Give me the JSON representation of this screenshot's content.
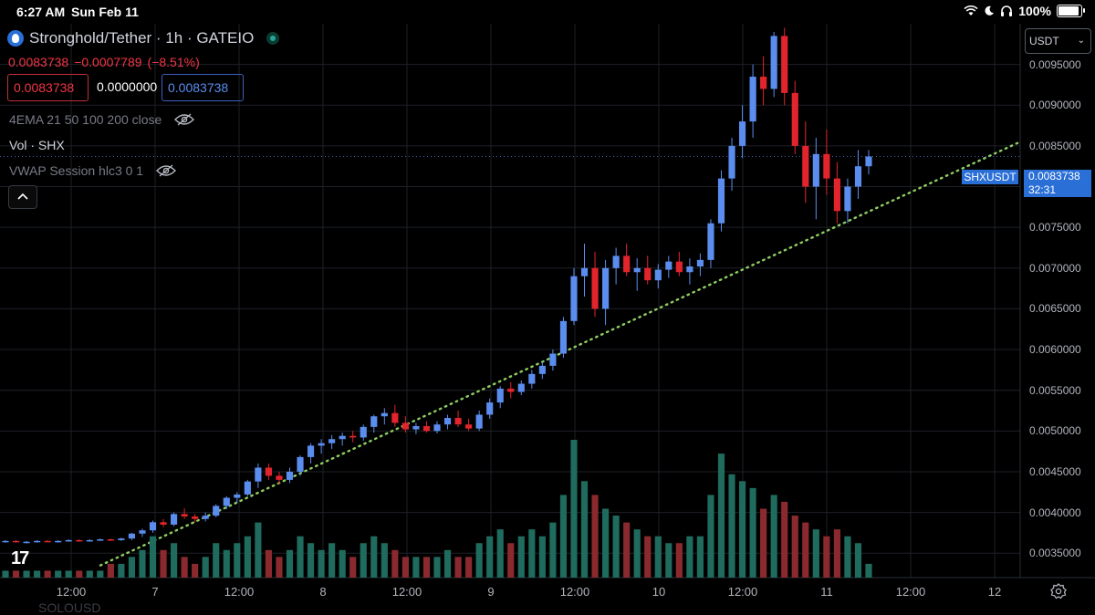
{
  "status_bar": {
    "time": "6:27 AM",
    "date": "Sun Feb 11",
    "battery_percent": "100%",
    "battery_level": 1.0
  },
  "header": {
    "title": "Stronghold/Tether · 1h · GATEIO",
    "price_change_line": {
      "last": "0.0083738",
      "change": "−0.0007789",
      "change_pct": "(−8.51%)"
    },
    "bid_price": "0.0083738",
    "spread": "0.0000000",
    "ask_price": "0.0083738"
  },
  "indicators": {
    "ema": "4EMA 21 50 100 200 close",
    "volume": "Vol · SHX",
    "vwap": "VWAP Session hlc3 0 1"
  },
  "currency_select": {
    "value": "USDT"
  },
  "price_tag": {
    "symbol": "SHXUSDT",
    "price": "0.0083738",
    "countdown": "32:31"
  },
  "bottom_ghost_text": "SOLOUSD",
  "colors": {
    "up": "#5b8def",
    "down": "#e2242d",
    "vol_up": "#1f6b5e",
    "vol_down": "#8a2a2e",
    "trendline": "#8fce62",
    "grid": "#1e2128"
  },
  "chart_data": {
    "type": "candlestick",
    "symbol": "SHXUSDT",
    "interval": "1h",
    "ylim": [
      0.0032,
      0.01
    ],
    "y_ticks": [
      "0.0095000",
      "0.0090000",
      "0.0085000",
      "0.0080000",
      "0.0075000",
      "0.0070000",
      "0.0065000",
      "0.0060000",
      "0.0055000",
      "0.0050000",
      "0.0045000",
      "0.0040000",
      "0.0035000"
    ],
    "x_ticks": [
      "12:00",
      "7",
      "12:00",
      "8",
      "12:00",
      "9",
      "12:00",
      "10",
      "12:00",
      "11",
      "12:00",
      "12"
    ],
    "trendline": {
      "style": "dotted",
      "points": [
        [
          0,
          0.00335
        ],
        [
          100,
          0.00855
        ]
      ]
    },
    "candles": [
      [
        0.00365,
        0.00366,
        0.00363,
        0.00365,
        1
      ],
      [
        0.00365,
        0.00366,
        0.00363,
        0.00364,
        1
      ],
      [
        0.00364,
        0.00365,
        0.00362,
        0.00364,
        1
      ],
      [
        0.00364,
        0.00366,
        0.00363,
        0.00365,
        1
      ],
      [
        0.00365,
        0.00366,
        0.00364,
        0.00364,
        1
      ],
      [
        0.00364,
        0.00366,
        0.00363,
        0.00365,
        1
      ],
      [
        0.00365,
        0.00367,
        0.00364,
        0.00366,
        1
      ],
      [
        0.00366,
        0.00367,
        0.00364,
        0.00365,
        1
      ],
      [
        0.00365,
        0.00367,
        0.00364,
        0.00366,
        1
      ],
      [
        0.00366,
        0.00368,
        0.00365,
        0.00367,
        1
      ],
      [
        0.00367,
        0.00368,
        0.00365,
        0.00366,
        2
      ],
      [
        0.00366,
        0.00369,
        0.00365,
        0.00368,
        2
      ],
      [
        0.00368,
        0.00375,
        0.00366,
        0.00374,
        3
      ],
      [
        0.00374,
        0.0038,
        0.0037,
        0.00378,
        4
      ],
      [
        0.00378,
        0.0039,
        0.00375,
        0.00388,
        6
      ],
      [
        0.00388,
        0.00392,
        0.00382,
        0.00385,
        4
      ],
      [
        0.00385,
        0.004,
        0.00383,
        0.00398,
        5
      ],
      [
        0.00398,
        0.00405,
        0.00392,
        0.00395,
        3
      ],
      [
        0.00395,
        0.00398,
        0.00388,
        0.00392,
        2
      ],
      [
        0.00392,
        0.004,
        0.00389,
        0.00396,
        3
      ],
      [
        0.00396,
        0.0041,
        0.00394,
        0.00408,
        5
      ],
      [
        0.00408,
        0.0042,
        0.00404,
        0.00418,
        4
      ],
      [
        0.00418,
        0.00425,
        0.00412,
        0.00422,
        5
      ],
      [
        0.00422,
        0.0044,
        0.0042,
        0.00438,
        6
      ],
      [
        0.00438,
        0.0046,
        0.0043,
        0.00455,
        8
      ],
      [
        0.00455,
        0.0046,
        0.0044,
        0.00445,
        4
      ],
      [
        0.00445,
        0.0045,
        0.00435,
        0.0044,
        3
      ],
      [
        0.0044,
        0.00455,
        0.00436,
        0.0045,
        4
      ],
      [
        0.0045,
        0.0047,
        0.00445,
        0.00468,
        6
      ],
      [
        0.00468,
        0.00485,
        0.0046,
        0.00482,
        5
      ],
      [
        0.00482,
        0.0049,
        0.00472,
        0.00485,
        4
      ],
      [
        0.00485,
        0.00495,
        0.00478,
        0.0049,
        5
      ],
      [
        0.0049,
        0.00498,
        0.00482,
        0.00494,
        4
      ],
      [
        0.00494,
        0.005,
        0.00486,
        0.00492,
        3
      ],
      [
        0.00492,
        0.00508,
        0.00488,
        0.00505,
        5
      ],
      [
        0.00505,
        0.0052,
        0.00498,
        0.00518,
        6
      ],
      [
        0.00518,
        0.00528,
        0.00508,
        0.00522,
        5
      ],
      [
        0.00522,
        0.00532,
        0.00505,
        0.0051,
        4
      ],
      [
        0.0051,
        0.00518,
        0.00498,
        0.00502,
        3
      ],
      [
        0.00502,
        0.0051,
        0.00496,
        0.00506,
        3
      ],
      [
        0.00506,
        0.00512,
        0.00498,
        0.005,
        3
      ],
      [
        0.005,
        0.00512,
        0.00497,
        0.00508,
        3
      ],
      [
        0.00508,
        0.0052,
        0.00502,
        0.00516,
        4
      ],
      [
        0.00516,
        0.00525,
        0.00505,
        0.00508,
        3
      ],
      [
        0.00508,
        0.00515,
        0.005,
        0.00503,
        3
      ],
      [
        0.00503,
        0.00525,
        0.005,
        0.0052,
        5
      ],
      [
        0.0052,
        0.0054,
        0.00515,
        0.00535,
        6
      ],
      [
        0.00535,
        0.00555,
        0.00528,
        0.00552,
        7
      ],
      [
        0.00552,
        0.0056,
        0.0054,
        0.00548,
        5
      ],
      [
        0.00548,
        0.00562,
        0.00544,
        0.00558,
        6
      ],
      [
        0.00558,
        0.00575,
        0.00552,
        0.0057,
        7
      ],
      [
        0.0057,
        0.00585,
        0.00564,
        0.0058,
        6
      ],
      [
        0.0058,
        0.006,
        0.00574,
        0.00595,
        8
      ],
      [
        0.00595,
        0.0064,
        0.0059,
        0.00635,
        12
      ],
      [
        0.00635,
        0.007,
        0.0063,
        0.0069,
        20
      ],
      [
        0.0069,
        0.0073,
        0.00665,
        0.007,
        14
      ],
      [
        0.007,
        0.0072,
        0.0064,
        0.0065,
        12
      ],
      [
        0.0065,
        0.0071,
        0.0063,
        0.007,
        10
      ],
      [
        0.007,
        0.00725,
        0.0068,
        0.00715,
        9
      ],
      [
        0.00715,
        0.0073,
        0.0069,
        0.00695,
        8
      ],
      [
        0.00695,
        0.00712,
        0.00672,
        0.007,
        7
      ],
      [
        0.007,
        0.00715,
        0.0068,
        0.00685,
        6
      ],
      [
        0.00685,
        0.00705,
        0.00675,
        0.00698,
        6
      ],
      [
        0.00698,
        0.00715,
        0.00688,
        0.00708,
        5
      ],
      [
        0.00708,
        0.0072,
        0.0069,
        0.00695,
        5
      ],
      [
        0.00695,
        0.00712,
        0.0068,
        0.00702,
        6
      ],
      [
        0.00702,
        0.00718,
        0.0069,
        0.0071,
        6
      ],
      [
        0.0071,
        0.0076,
        0.007,
        0.00755,
        12
      ],
      [
        0.00755,
        0.0082,
        0.00745,
        0.0081,
        18
      ],
      [
        0.0081,
        0.0086,
        0.00795,
        0.0085,
        15
      ],
      [
        0.0085,
        0.009,
        0.00835,
        0.0088,
        14
      ],
      [
        0.0088,
        0.0095,
        0.0086,
        0.00935,
        13
      ],
      [
        0.00935,
        0.0096,
        0.009,
        0.0092,
        10
      ],
      [
        0.0092,
        0.0099,
        0.0091,
        0.00985,
        12
      ],
      [
        0.00985,
        0.00995,
        0.009,
        0.00915,
        11
      ],
      [
        0.00915,
        0.0093,
        0.0084,
        0.0085,
        9
      ],
      [
        0.0085,
        0.0088,
        0.0078,
        0.008,
        8
      ],
      [
        0.008,
        0.0086,
        0.0076,
        0.0084,
        7
      ],
      [
        0.0084,
        0.0087,
        0.0079,
        0.0081,
        6
      ],
      [
        0.0081,
        0.0083,
        0.00755,
        0.0077,
        7
      ],
      [
        0.0077,
        0.0081,
        0.00755,
        0.008,
        6
      ],
      [
        0.008,
        0.00845,
        0.00785,
        0.00825,
        5
      ],
      [
        0.00825,
        0.00845,
        0.00815,
        0.00837,
        2
      ]
    ]
  }
}
